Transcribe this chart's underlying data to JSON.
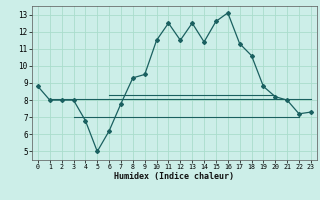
{
  "title": "",
  "xlabel": "Humidex (Indice chaleur)",
  "bg_color": "#cceee8",
  "grid_color": "#aaddcc",
  "line_color": "#1a6060",
  "xlim": [
    -0.5,
    23.5
  ],
  "ylim": [
    4.5,
    13.5
  ],
  "xticks": [
    0,
    1,
    2,
    3,
    4,
    5,
    6,
    7,
    8,
    9,
    10,
    11,
    12,
    13,
    14,
    15,
    16,
    17,
    18,
    19,
    20,
    21,
    22,
    23
  ],
  "yticks": [
    5,
    6,
    7,
    8,
    9,
    10,
    11,
    12,
    13
  ],
  "main_line_x": [
    0,
    1,
    2,
    3,
    4,
    5,
    6,
    7,
    8,
    9,
    10,
    11,
    12,
    13,
    14,
    15,
    16,
    17,
    18,
    19,
    20,
    21,
    22,
    23
  ],
  "main_line_y": [
    8.8,
    8.0,
    8.0,
    8.0,
    6.8,
    5.0,
    6.2,
    7.8,
    9.3,
    9.5,
    11.5,
    12.5,
    11.5,
    12.5,
    11.4,
    12.6,
    13.1,
    11.3,
    10.6,
    8.8,
    8.2,
    8.0,
    7.2,
    7.3
  ],
  "flat_line1_y": 8.05,
  "flat_line1_x1": 1,
  "flat_line1_x2": 23,
  "flat_line2_y": 8.3,
  "flat_line2_x1": 6,
  "flat_line2_x2": 20,
  "flat_line3_y": 7.0,
  "flat_line3_x1": 3,
  "flat_line3_x2": 22
}
